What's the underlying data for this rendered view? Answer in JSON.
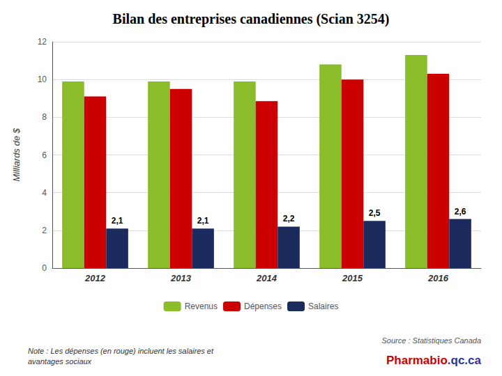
{
  "chart_data": {
    "type": "bar",
    "title": "Bilan des entreprises canadiennes (Scian 3254)",
    "categories": [
      "2012",
      "2013",
      "2014",
      "2015",
      "2016"
    ],
    "series": [
      {
        "name": "Revenus",
        "color": "#8BBD2A",
        "values": [
          9.9,
          9.9,
          9.9,
          10.8,
          11.3
        ]
      },
      {
        "name": "Dépenses",
        "color": "#CC0000",
        "values": [
          9.1,
          9.5,
          8.85,
          10.0,
          10.3
        ]
      },
      {
        "name": "Salaires",
        "color": "#1C2B5E",
        "values": [
          2.1,
          2.1,
          2.2,
          2.5,
          2.6
        ],
        "data_labels": true,
        "value_labels": [
          "2,1",
          "2,1",
          "2,2",
          "2,5",
          "2,6"
        ]
      }
    ],
    "ylabel": "Milliards de $",
    "ylim": [
      0,
      12
    ],
    "yticks": [
      0,
      2,
      4,
      6,
      8,
      10,
      12
    ],
    "grid": true,
    "legend": "bottom",
    "annotations": [
      {
        "text": "Note : Les dépenses (en rouge) incluent les salaires et\navantages sociaux"
      },
      {
        "text": "Source : Statistiques Canada"
      },
      {
        "text": "Pharmabio",
        "color": "#CC0000"
      },
      {
        "text": ".qc.ca",
        "color": "#333399"
      }
    ]
  }
}
